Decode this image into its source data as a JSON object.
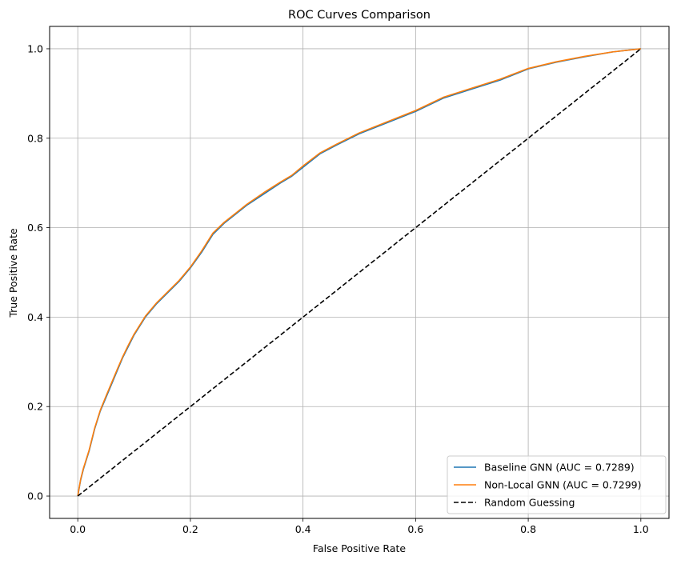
{
  "chart_data": {
    "type": "line",
    "title": "ROC Curves Comparison",
    "xlabel": "False Positive Rate",
    "ylabel": "True Positive Rate",
    "xlim": [
      -0.05,
      1.05
    ],
    "ylim": [
      -0.05,
      1.05
    ],
    "xticks": [
      0.0,
      0.2,
      0.4,
      0.6,
      0.8,
      1.0
    ],
    "xtick_labels": [
      "0.0",
      "0.2",
      "0.4",
      "0.6",
      "0.8",
      "1.0"
    ],
    "yticks": [
      0.0,
      0.2,
      0.4,
      0.6,
      0.8,
      1.0
    ],
    "ytick_labels": [
      "0.0",
      "0.2",
      "0.4",
      "0.6",
      "0.8",
      "1.0"
    ],
    "grid": true,
    "legend_position": "bottom-right",
    "series": [
      {
        "name": "Baseline GNN (AUC = 0.7289)",
        "color": "#1f77b4",
        "style": "solid",
        "x": [
          0.0,
          0.005,
          0.01,
          0.015,
          0.02,
          0.03,
          0.04,
          0.05,
          0.06,
          0.07,
          0.08,
          0.09,
          0.1,
          0.12,
          0.14,
          0.16,
          0.18,
          0.2,
          0.22,
          0.24,
          0.26,
          0.28,
          0.3,
          0.33,
          0.36,
          0.38,
          0.4,
          0.43,
          0.46,
          0.5,
          0.55,
          0.6,
          0.65,
          0.7,
          0.75,
          0.8,
          0.85,
          0.9,
          0.95,
          1.0
        ],
        "y": [
          0.0,
          0.035,
          0.06,
          0.08,
          0.1,
          0.15,
          0.19,
          0.22,
          0.25,
          0.28,
          0.31,
          0.335,
          0.36,
          0.4,
          0.43,
          0.455,
          0.48,
          0.51,
          0.545,
          0.585,
          0.61,
          0.63,
          0.65,
          0.675,
          0.7,
          0.715,
          0.735,
          0.765,
          0.785,
          0.81,
          0.835,
          0.86,
          0.89,
          0.91,
          0.93,
          0.955,
          0.97,
          0.982,
          0.993,
          1.0
        ]
      },
      {
        "name": "Non-Local GNN (AUC = 0.7299)",
        "color": "#ff7f0e",
        "style": "solid",
        "x": [
          0.0,
          0.005,
          0.01,
          0.015,
          0.02,
          0.03,
          0.04,
          0.05,
          0.06,
          0.07,
          0.08,
          0.09,
          0.1,
          0.12,
          0.14,
          0.16,
          0.18,
          0.2,
          0.22,
          0.24,
          0.26,
          0.28,
          0.3,
          0.33,
          0.36,
          0.38,
          0.4,
          0.43,
          0.46,
          0.5,
          0.55,
          0.6,
          0.65,
          0.7,
          0.75,
          0.8,
          0.85,
          0.9,
          0.95,
          1.0
        ],
        "y": [
          0.0,
          0.037,
          0.062,
          0.082,
          0.102,
          0.152,
          0.192,
          0.223,
          0.253,
          0.283,
          0.312,
          0.338,
          0.362,
          0.402,
          0.432,
          0.457,
          0.482,
          0.512,
          0.548,
          0.588,
          0.612,
          0.632,
          0.652,
          0.678,
          0.702,
          0.717,
          0.738,
          0.767,
          0.787,
          0.812,
          0.837,
          0.862,
          0.892,
          0.912,
          0.932,
          0.956,
          0.971,
          0.983,
          0.993,
          1.0
        ]
      },
      {
        "name": "Random Guessing",
        "color": "#000000",
        "style": "dashed",
        "x": [
          0.0,
          1.0
        ],
        "y": [
          0.0,
          1.0
        ]
      }
    ]
  }
}
